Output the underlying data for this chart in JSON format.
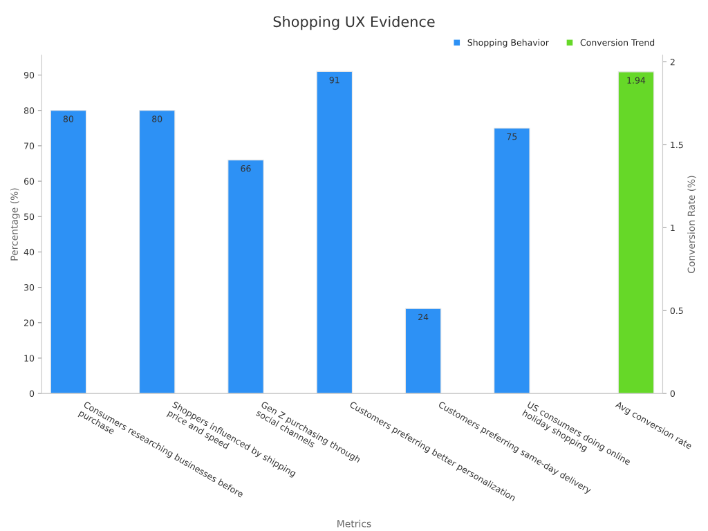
{
  "chart_data": {
    "type": "bar",
    "title": "Shopping UX Evidence",
    "xlabel": "Metrics",
    "ylabel": "Percentage (%)",
    "y2label": "Conversion Rate (%)",
    "categories": [
      "Consumers researching businesses before\npurchase",
      "Shoppers influenced by shipping\nprice and speed",
      "Gen Z purchasing through\nsocial channels",
      "Customers preferring better personalization",
      "Customers preferring same-day delivery",
      "US consumers doing online\nholiday shopping",
      "Avg conversion rate"
    ],
    "series": [
      {
        "name": "Shopping Behavior",
        "color": "#2d91f5",
        "values": [
          80,
          80,
          66,
          91,
          24,
          75,
          null
        ]
      },
      {
        "name": "Conversion Trend",
        "color": "#66d828",
        "axis": "y2",
        "values": [
          null,
          null,
          null,
          null,
          null,
          null,
          1.94
        ]
      }
    ],
    "ylim": [
      0,
      95.6
    ],
    "yticks": [
      0,
      10,
      20,
      30,
      40,
      50,
      60,
      70,
      80,
      90
    ],
    "y2lim": [
      0,
      2.04
    ],
    "y2ticks": [
      0,
      0.5,
      1,
      1.5,
      2
    ],
    "data_labels": true,
    "legend": "top right",
    "grid": false
  }
}
